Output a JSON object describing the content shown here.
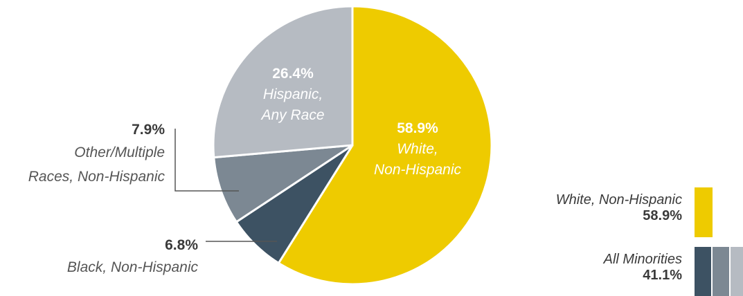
{
  "chart_data": {
    "type": "pie",
    "slices": [
      {
        "pct_label": "58.9%",
        "label_lines": [
          "White,",
          "Non-Hispanic"
        ],
        "value": 58.9,
        "color": "#eecb00"
      },
      {
        "pct_label": "6.8%",
        "label_lines": [
          "Black, Non-Hispanic"
        ],
        "value": 6.8,
        "color": "#3d5263"
      },
      {
        "pct_label": "7.9%",
        "label_lines": [
          "Other/Multiple",
          "Races, Non-Hispanic"
        ],
        "value": 7.9,
        "color": "#7c8893"
      },
      {
        "pct_label": "26.4%",
        "label_lines": [
          "Hispanic,",
          "Any Race"
        ],
        "value": 26.4,
        "color": "#b6bbc2"
      }
    ]
  },
  "legend": {
    "white": {
      "name": "White, Non-Hispanic",
      "value": "58.9%",
      "color": "#eecb00"
    },
    "minorities": {
      "name": "All Minorities",
      "value": "41.1%",
      "colors": [
        "#3d5263",
        "#7c8893",
        "#b6bbc2"
      ]
    }
  }
}
